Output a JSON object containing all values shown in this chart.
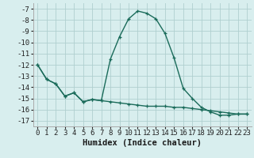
{
  "line1_x": [
    0,
    1,
    2,
    3,
    4,
    5,
    6,
    7,
    8,
    9,
    10,
    11,
    12,
    13,
    14,
    15,
    16,
    17,
    18,
    19,
    20,
    21,
    22,
    23
  ],
  "line1_y": [
    -12.0,
    -13.3,
    -13.7,
    -14.8,
    -14.5,
    -15.3,
    -15.1,
    -15.2,
    -11.5,
    -9.5,
    -7.9,
    -7.2,
    -7.4,
    -7.9,
    -9.2,
    -11.4,
    -14.1,
    -15.0,
    -15.8,
    -16.2,
    -16.5,
    -16.5,
    -16.4,
    -16.4
  ],
  "line2_x": [
    0,
    1,
    2,
    3,
    4,
    5,
    6,
    7,
    8,
    9,
    10,
    11,
    12,
    13,
    14,
    15,
    16,
    17,
    18,
    19,
    20,
    21,
    22,
    23
  ],
  "line2_y": [
    -12.0,
    -13.3,
    -13.7,
    -14.8,
    -14.5,
    -15.3,
    -15.1,
    -15.2,
    -15.3,
    -15.4,
    -15.5,
    -15.6,
    -15.7,
    -15.7,
    -15.7,
    -15.8,
    -15.8,
    -15.9,
    -16.0,
    -16.1,
    -16.2,
    -16.3,
    -16.4,
    -16.4
  ],
  "line_color": "#1a6b5a",
  "bg_color": "#d8eeee",
  "grid_color": "#b0cfcf",
  "xlabel": "Humidex (Indice chaleur)",
  "ylim": [
    -17.5,
    -6.5
  ],
  "xlim": [
    -0.5,
    23.5
  ],
  "yticks": [
    -7,
    -8,
    -9,
    -10,
    -11,
    -12,
    -13,
    -14,
    -15,
    -16,
    -17
  ],
  "xticks": [
    0,
    1,
    2,
    3,
    4,
    5,
    6,
    7,
    8,
    9,
    10,
    11,
    12,
    13,
    14,
    15,
    16,
    17,
    18,
    19,
    20,
    21,
    22,
    23
  ],
  "marker": "+",
  "markersize": 3.5,
  "linewidth": 1.0,
  "tick_fontsize": 6.5,
  "xlabel_fontsize": 7.5
}
